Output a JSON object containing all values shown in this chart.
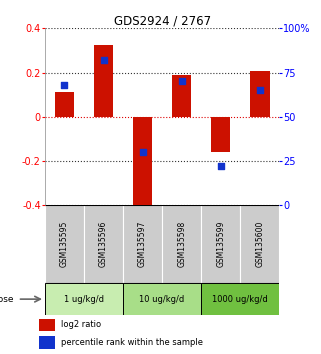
{
  "title": "GDS2924 / 2767",
  "samples": [
    "GSM135595",
    "GSM135596",
    "GSM135597",
    "GSM135598",
    "GSM135599",
    "GSM135600"
  ],
  "log2_ratios": [
    0.11,
    0.325,
    -0.42,
    0.19,
    -0.16,
    0.205
  ],
  "percentile_ranks": [
    68,
    82,
    30,
    70,
    22,
    65
  ],
  "dose_groups": [
    {
      "label": "1 ug/kg/d",
      "start": 0,
      "end": 2,
      "color": "#c8edb0"
    },
    {
      "label": "10 ug/kg/d",
      "start": 2,
      "end": 4,
      "color": "#a8de88"
    },
    {
      "label": "1000 ug/kg/d",
      "start": 4,
      "end": 6,
      "color": "#70c040"
    }
  ],
  "ylim": [
    -0.4,
    0.4
  ],
  "yticks_left": [
    -0.4,
    -0.2,
    0.0,
    0.2,
    0.4
  ],
  "yticks_right": [
    0,
    25,
    50,
    75,
    100
  ],
  "bar_color": "#cc1100",
  "dot_color": "#1133cc",
  "bar_width": 0.5,
  "dot_size": 18,
  "sample_box_color": "#cccccc",
  "legend_red_label": "log2 ratio",
  "legend_blue_label": "percentile rank within the sample",
  "dose_label": "dose"
}
